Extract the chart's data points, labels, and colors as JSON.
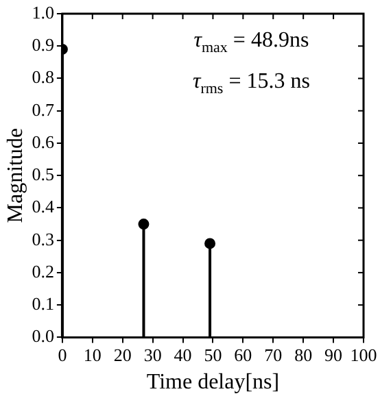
{
  "chart_data": {
    "type": "lollipop",
    "xlabel": "Time delay[ns]",
    "ylabel": "Magnitude",
    "x": [
      0,
      27,
      49
    ],
    "values": [
      0.89,
      0.35,
      0.29
    ],
    "color": "#000000",
    "marker": "circle",
    "xlim": [
      0,
      100
    ],
    "xticks": [
      0,
      10,
      20,
      30,
      40,
      50,
      60,
      70,
      80,
      90,
      100
    ],
    "ylim": [
      0,
      1
    ],
    "yticks": [
      {
        "value": 0,
        "label": "0.0"
      },
      {
        "value": 0.1,
        "label": "0.1"
      },
      {
        "value": 0.2,
        "label": "0.2"
      },
      {
        "value": 0.3,
        "label": "0.3"
      },
      {
        "value": 0.4,
        "label": "0.4"
      },
      {
        "value": 0.5,
        "label": "0.5"
      },
      {
        "value": 0.6,
        "label": "0.6"
      },
      {
        "value": 0.7,
        "label": "0.7"
      },
      {
        "value": 0.8,
        "label": "0.8"
      },
      {
        "value": 0.9,
        "label": "0.9"
      },
      {
        "value": 1,
        "label": "1.0"
      }
    ],
    "annotations": [
      "τ$_{max}$ = 48.9ns",
      "τ$_{rms}$ = 15.3 ns"
    ],
    "grid": false,
    "legend": false
  }
}
